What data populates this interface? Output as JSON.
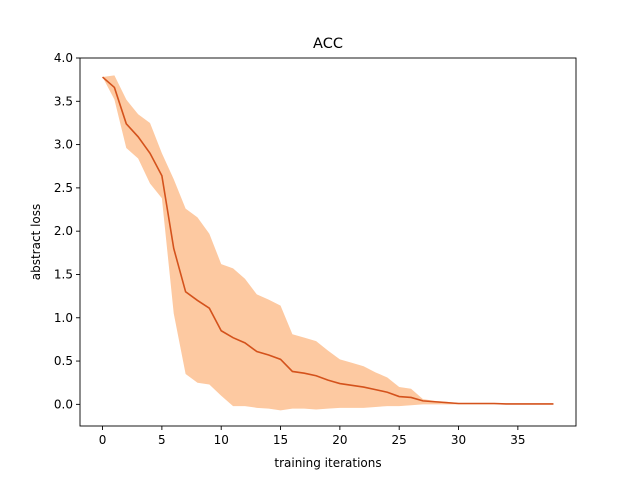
{
  "chart_data": {
    "type": "line",
    "title": "ACC",
    "xlabel": "training iterations",
    "ylabel": "abstract loss",
    "xlim": [
      -1.9,
      39.9
    ],
    "ylim": [
      -0.25,
      4.0
    ],
    "xticks": [
      0,
      5,
      10,
      15,
      20,
      25,
      30,
      35
    ],
    "yticks": [
      0.0,
      0.5,
      1.0,
      1.5,
      2.0,
      2.5,
      3.0,
      3.5,
      4.0
    ],
    "ytick_labels": [
      "0.0",
      "0.5",
      "1.0",
      "1.5",
      "2.0",
      "2.5",
      "3.0",
      "3.5",
      "4.0"
    ],
    "grid": false,
    "colors": {
      "line": "#d4521c",
      "band": "#fdc9a1",
      "axes": "#000000"
    },
    "x": [
      0,
      1,
      2,
      3,
      4,
      5,
      6,
      7,
      8,
      9,
      10,
      11,
      12,
      13,
      14,
      15,
      16,
      17,
      18,
      19,
      20,
      21,
      22,
      23,
      24,
      25,
      26,
      27,
      28,
      29,
      30,
      31,
      32,
      33,
      34,
      35,
      36,
      37,
      38
    ],
    "series": [
      {
        "values": [
          3.78,
          3.66,
          3.24,
          3.09,
          2.9,
          2.64,
          1.8,
          1.3,
          1.2,
          1.11,
          0.85,
          0.77,
          0.71,
          0.61,
          0.57,
          0.52,
          0.38,
          0.36,
          0.33,
          0.28,
          0.24,
          0.22,
          0.2,
          0.17,
          0.14,
          0.09,
          0.08,
          0.04,
          0.03,
          0.02,
          0.01,
          0.01,
          0.01,
          0.01,
          0.005,
          0.005,
          0.005,
          0.005,
          0.005
        ],
        "lower": [
          3.78,
          3.52,
          2.96,
          2.84,
          2.55,
          2.38,
          1.05,
          0.35,
          0.25,
          0.23,
          0.1,
          -0.02,
          -0.02,
          -0.04,
          -0.05,
          -0.07,
          -0.05,
          -0.05,
          -0.06,
          -0.05,
          -0.04,
          -0.04,
          -0.04,
          -0.03,
          -0.02,
          -0.02,
          -0.01,
          0.0,
          0.0,
          0.0,
          0.0,
          0.0,
          0.0,
          0.0,
          0.0,
          0.0,
          0.0,
          0.0,
          0.0
        ],
        "upper": [
          3.78,
          3.8,
          3.52,
          3.35,
          3.25,
          2.9,
          2.6,
          2.26,
          2.16,
          1.97,
          1.62,
          1.57,
          1.45,
          1.27,
          1.21,
          1.14,
          0.81,
          0.77,
          0.73,
          0.62,
          0.52,
          0.48,
          0.44,
          0.37,
          0.31,
          0.2,
          0.18,
          0.06,
          0.04,
          0.03,
          0.015,
          0.015,
          0.015,
          0.012,
          0.01,
          0.01,
          0.01,
          0.01,
          0.01
        ]
      }
    ]
  }
}
